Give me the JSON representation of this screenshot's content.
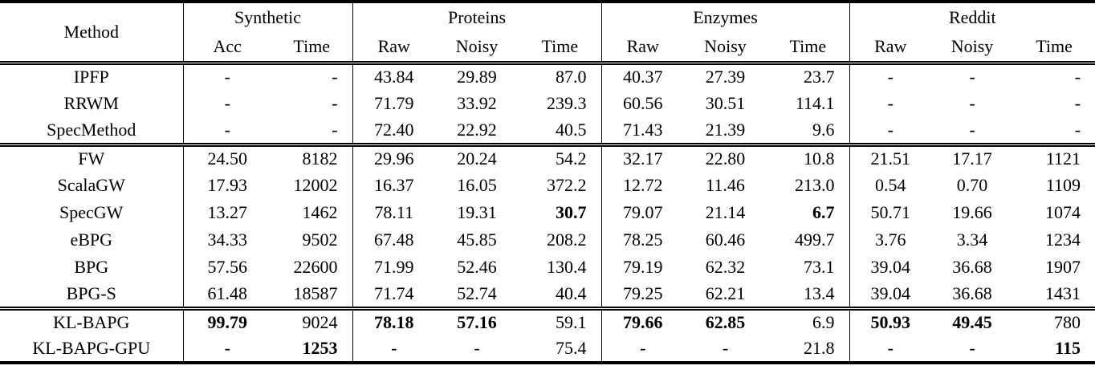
{
  "table": {
    "header": {
      "method_label": "Method",
      "groups": [
        {
          "label": "Synthetic",
          "subs": [
            "Acc",
            "Time"
          ]
        },
        {
          "label": "Proteins",
          "subs": [
            "Raw",
            "Noisy",
            "Time"
          ]
        },
        {
          "label": "Enzymes",
          "subs": [
            "Raw",
            "Noisy",
            "Time"
          ]
        },
        {
          "label": "Reddit",
          "subs": [
            "Raw",
            "Noisy",
            "Time"
          ]
        }
      ]
    },
    "column_keys": [
      "syn-acc",
      "syn-time",
      "prot-raw",
      "prot-noisy",
      "prot-time",
      "enz-raw",
      "enz-noisy",
      "enz-time",
      "red-raw",
      "red-noisy",
      "red-time"
    ],
    "blocks": [
      {
        "name": "baseline-matching-methods",
        "rows": [
          {
            "method": "IPFP",
            "values": [
              "-",
              "-",
              "43.84",
              "29.89",
              "87.0",
              "40.37",
              "27.39",
              "23.7",
              "-",
              "-",
              "-"
            ]
          },
          {
            "method": "RRWM",
            "values": [
              "-",
              "-",
              "71.79",
              "33.92",
              "239.3",
              "60.56",
              "30.51",
              "114.1",
              "-",
              "-",
              "-"
            ]
          },
          {
            "method": "SpecMethod",
            "values": [
              "-",
              "-",
              "72.40",
              "22.92",
              "40.5",
              "71.43",
              "21.39",
              "9.6",
              "-",
              "-",
              "-"
            ]
          }
        ]
      },
      {
        "name": "gw-methods",
        "rows": [
          {
            "method": "FW",
            "values": [
              "24.50",
              "8182",
              "29.96",
              "20.24",
              "54.2",
              "32.17",
              "22.80",
              "10.8",
              "21.51",
              "17.17",
              "1121"
            ]
          },
          {
            "method": "ScalaGW",
            "values": [
              "17.93",
              "12002",
              "16.37",
              "16.05",
              "372.2",
              "12.72",
              "11.46",
              "213.0",
              "0.54",
              "0.70",
              "1109"
            ]
          },
          {
            "method": "SpecGW",
            "values": [
              "13.27",
              "1462",
              "78.11",
              "19.31",
              "30.7",
              "79.07",
              "21.14",
              "6.7",
              "50.71",
              "19.66",
              "1074"
            ],
            "bold": [
              0,
              0,
              0,
              0,
              1,
              0,
              0,
              1,
              0,
              0,
              0
            ]
          },
          {
            "method": "eBPG",
            "values": [
              "34.33",
              "9502",
              "67.48",
              "45.85",
              "208.2",
              "78.25",
              "60.46",
              "499.7",
              "3.76",
              "3.34",
              "1234"
            ]
          },
          {
            "method": "BPG",
            "values": [
              "57.56",
              "22600",
              "71.99",
              "52.46",
              "130.4",
              "79.19",
              "62.32",
              "73.1",
              "39.04",
              "36.68",
              "1907"
            ]
          },
          {
            "method": "BPG-S",
            "values": [
              "61.48",
              "18587",
              "71.74",
              "52.74",
              "40.4",
              "79.25",
              "62.21",
              "13.4",
              "39.04",
              "36.68",
              "1431"
            ]
          }
        ]
      },
      {
        "name": "proposed-methods",
        "rows": [
          {
            "method": "KL-BAPG",
            "values": [
              "99.79",
              "9024",
              "78.18",
              "57.16",
              "59.1",
              "79.66",
              "62.85",
              "6.9",
              "50.93",
              "49.45",
              "780"
            ],
            "bold": [
              1,
              0,
              1,
              1,
              0,
              1,
              1,
              0,
              1,
              1,
              0
            ]
          },
          {
            "method": "KL-BAPG-GPU",
            "values": [
              "-",
              "1253",
              "-",
              "-",
              "75.4",
              "-",
              "-",
              "21.8",
              "-",
              "-",
              "115"
            ],
            "bold": [
              0,
              1,
              0,
              0,
              0,
              0,
              0,
              0,
              0,
              0,
              1
            ]
          }
        ]
      }
    ]
  }
}
